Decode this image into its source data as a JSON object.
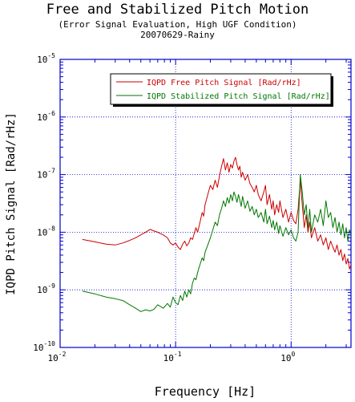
{
  "chart_data": {
    "type": "line",
    "title": "Free and Stabilized Pitch Motion",
    "subtitle": "(Error Signal Evaluation, High UGF Condition)",
    "subtitle2": "20070629-Rainy",
    "xlabel": "Frequency [Hz]",
    "ylabel": "IQPD Pitch Signal [Rad/rHz]",
    "xscale": "log",
    "yscale": "log",
    "xlim": [
      0.01,
      3.3
    ],
    "ylim": [
      1e-10,
      1e-05
    ],
    "grid": true,
    "legend_position": "top-right",
    "x_ticks": [
      {
        "value": 0.01,
        "base": "10",
        "exp": "-2"
      },
      {
        "value": 0.1,
        "base": "10",
        "exp": "-1"
      },
      {
        "value": 1,
        "base": "10",
        "exp": "0"
      }
    ],
    "y_ticks": [
      {
        "value": 1e-10,
        "base": "10",
        "exp": "-10"
      },
      {
        "value": 1e-09,
        "base": "10",
        "exp": "-9"
      },
      {
        "value": 1e-08,
        "base": "10",
        "exp": "-8"
      },
      {
        "value": 1e-07,
        "base": "10",
        "exp": "-7"
      },
      {
        "value": 1e-06,
        "base": "10",
        "exp": "-6"
      },
      {
        "value": 1e-05,
        "base": "10",
        "exp": "-5"
      }
    ],
    "series": [
      {
        "name": "IQPD Free Pitch Signal [Rad/rHz]",
        "color": "#cc0000",
        "x": [
          0.0156,
          0.02,
          0.025,
          0.03,
          0.035,
          0.04,
          0.045,
          0.05,
          0.055,
          0.06,
          0.065,
          0.07,
          0.078,
          0.085,
          0.09,
          0.095,
          0.1,
          0.105,
          0.11,
          0.115,
          0.12,
          0.125,
          0.13,
          0.135,
          0.14,
          0.145,
          0.15,
          0.155,
          0.16,
          0.165,
          0.17,
          0.175,
          0.18,
          0.19,
          0.2,
          0.21,
          0.22,
          0.23,
          0.24,
          0.25,
          0.26,
          0.27,
          0.28,
          0.29,
          0.3,
          0.31,
          0.32,
          0.33,
          0.34,
          0.35,
          0.36,
          0.37,
          0.38,
          0.4,
          0.42,
          0.44,
          0.46,
          0.48,
          0.5,
          0.52,
          0.55,
          0.58,
          0.6,
          0.62,
          0.65,
          0.68,
          0.7,
          0.72,
          0.75,
          0.78,
          0.8,
          0.85,
          0.9,
          0.95,
          1.0,
          1.05,
          1.1,
          1.15,
          1.2,
          1.25,
          1.3,
          1.35,
          1.4,
          1.45,
          1.5,
          1.6,
          1.7,
          1.8,
          1.9,
          2.0,
          2.1,
          2.2,
          2.3,
          2.4,
          2.5,
          2.6,
          2.7,
          2.8,
          2.9,
          3.0,
          3.1,
          3.2,
          3.3
        ],
        "y": [
          7.5e-09,
          6.8e-09,
          6.2e-09,
          6e-09,
          6.5e-09,
          7.2e-09,
          8e-09,
          9e-09,
          1e-08,
          1.12e-08,
          1.05e-08,
          1e-08,
          9e-09,
          8e-09,
          6.5e-09,
          6e-09,
          6.5e-09,
          5.5e-09,
          5e-09,
          6.2e-09,
          7e-09,
          5.8e-09,
          6.5e-09,
          8e-09,
          7.5e-09,
          9.5e-09,
          1.2e-08,
          1e-08,
          1.3e-08,
          1.7e-08,
          2.2e-08,
          1.9e-08,
          3e-08,
          4.5e-08,
          6.5e-08,
          5.5e-08,
          8e-08,
          6e-08,
          9.5e-08,
          1.4e-07,
          1.9e-07,
          1.2e-07,
          1.6e-07,
          1.1e-07,
          1.5e-07,
          1.3e-07,
          1.7e-07,
          2e-07,
          1.5e-07,
          1.2e-07,
          1.4e-07,
          9e-08,
          1.1e-07,
          8e-08,
          1e-07,
          7e-08,
          6e-08,
          5e-08,
          6.5e-08,
          4.5e-08,
          3.5e-08,
          5e-08,
          6.5e-08,
          3e-08,
          4.5e-08,
          2.5e-08,
          3.5e-08,
          2e-08,
          3e-08,
          2.2e-08,
          3.5e-08,
          1.8e-08,
          2.5e-08,
          1.5e-08,
          2.2e-08,
          1.6e-08,
          1.4e-08,
          2.5e-08,
          8e-08,
          3e-08,
          1.2e-08,
          2e-08,
          1e-08,
          1.5e-08,
          8e-09,
          1.2e-08,
          7e-09,
          9e-09,
          6e-09,
          8e-09,
          5e-09,
          7e-09,
          5.5e-09,
          4.5e-09,
          6e-09,
          4e-09,
          5e-09,
          3.2e-09,
          4.2e-09,
          2.8e-09,
          3.5e-09,
          2.3e-09,
          2.7e-09
        ]
      },
      {
        "name": "IQPD Stabilized Pitch Signal [Rad/rHz]",
        "color": "#007700",
        "x": [
          0.0156,
          0.02,
          0.025,
          0.03,
          0.035,
          0.04,
          0.045,
          0.05,
          0.055,
          0.06,
          0.065,
          0.07,
          0.078,
          0.085,
          0.09,
          0.095,
          0.1,
          0.105,
          0.11,
          0.115,
          0.12,
          0.125,
          0.13,
          0.135,
          0.14,
          0.145,
          0.15,
          0.155,
          0.16,
          0.165,
          0.17,
          0.175,
          0.18,
          0.19,
          0.2,
          0.21,
          0.22,
          0.23,
          0.24,
          0.25,
          0.26,
          0.27,
          0.28,
          0.29,
          0.3,
          0.31,
          0.32,
          0.33,
          0.34,
          0.35,
          0.36,
          0.37,
          0.38,
          0.4,
          0.42,
          0.44,
          0.46,
          0.48,
          0.5,
          0.52,
          0.55,
          0.58,
          0.6,
          0.62,
          0.65,
          0.68,
          0.7,
          0.72,
          0.75,
          0.78,
          0.8,
          0.85,
          0.9,
          0.95,
          1.0,
          1.05,
          1.1,
          1.15,
          1.2,
          1.25,
          1.3,
          1.35,
          1.4,
          1.45,
          1.5,
          1.6,
          1.7,
          1.8,
          1.9,
          2.0,
          2.1,
          2.2,
          2.3,
          2.4,
          2.5,
          2.6,
          2.7,
          2.8,
          2.9,
          3.0,
          3.1,
          3.2,
          3.3
        ],
        "y": [
          9.5e-10,
          8.5e-10,
          7.5e-10,
          7e-10,
          6.5e-10,
          5.5e-10,
          4.8e-10,
          4.2e-10,
          4.5e-10,
          4.3e-10,
          4.6e-10,
          5.5e-10,
          4.8e-10,
          5.8e-10,
          5e-10,
          7.5e-10,
          6e-10,
          5.5e-10,
          8e-10,
          6.5e-10,
          9.5e-10,
          7.5e-10,
          1e-09,
          8.5e-10,
          1.3e-09,
          1.6e-09,
          1.5e-09,
          2e-09,
          2.5e-09,
          3e-09,
          3.6e-09,
          3.2e-09,
          4.5e-09,
          6e-09,
          8e-09,
          1.1e-08,
          1.5e-08,
          1.3e-08,
          2e-08,
          2.6e-08,
          3.5e-08,
          2.8e-08,
          4e-08,
          3.2e-08,
          4.5e-08,
          3.5e-08,
          5e-08,
          4.2e-08,
          3.3e-08,
          4.5e-08,
          3.6e-08,
          2.8e-08,
          4.2e-08,
          2.6e-08,
          3.5e-08,
          2.3e-08,
          2.8e-08,
          2e-08,
          2.5e-08,
          1.8e-08,
          2.2e-08,
          1.5e-08,
          2.5e-08,
          1.4e-08,
          1.9e-08,
          1.2e-08,
          1.6e-08,
          1.1e-08,
          1.5e-08,
          9.5e-09,
          1.3e-08,
          8.5e-09,
          1.2e-08,
          9e-09,
          1.1e-08,
          8e-09,
          7e-09,
          1e-08,
          1e-07,
          5e-08,
          2e-08,
          3e-08,
          1.2e-08,
          2.5e-08,
          1e-08,
          2e-08,
          1.5e-08,
          2.5e-08,
          1.3e-08,
          3.5e-08,
          1.8e-08,
          2.2e-08,
          1.2e-08,
          1.8e-08,
          1e-08,
          1.5e-08,
          9e-09,
          1.4e-08,
          8e-09,
          1.2e-08,
          7e-09,
          1.1e-08,
          9e-09
        ]
      }
    ]
  }
}
